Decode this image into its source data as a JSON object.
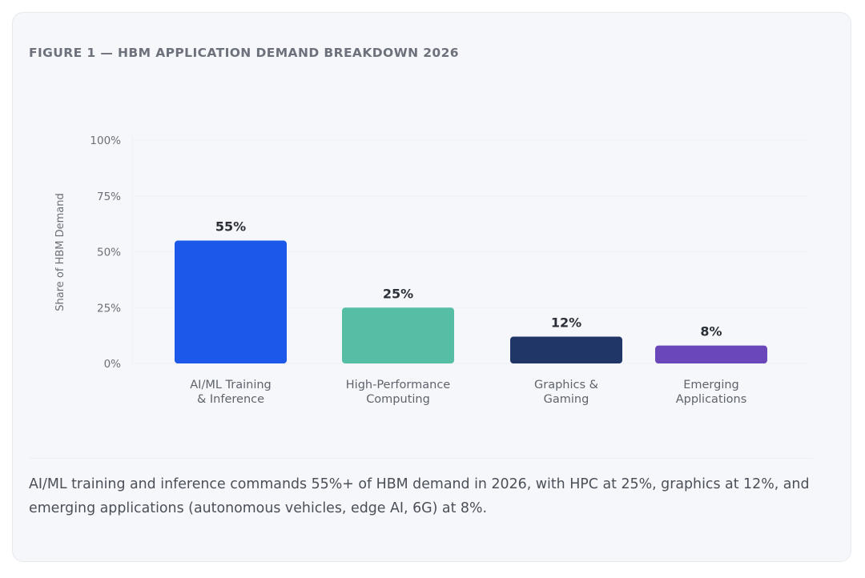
{
  "figure_title": "FIGURE 1 — HBM APPLICATION DEMAND BREAKDOWN 2026",
  "caption": "AI/ML training and inference commands 55%+ of HBM demand in 2026, with HPC at 25%, graphics at 12%, and emerging applications (autonomous vehicles, edge AI, 6G) at 8%.",
  "colors": {
    "card_background": "#f5f7fa",
    "title_text": "#6c717b",
    "caption_text": "#4b4f58",
    "grid": "#eef0f4"
  },
  "chart_data": {
    "type": "bar",
    "title": "FIGURE 1 — HBM APPLICATION DEMAND BREAKDOWN 2026",
    "categories": [
      [
        "AI/ML Training",
        "& Inference"
      ],
      [
        "High-Performance",
        "Computing"
      ],
      [
        "Graphics &",
        "Gaming"
      ],
      [
        "Emerging",
        "Applications"
      ]
    ],
    "values": [
      55,
      25,
      12,
      8
    ],
    "value_labels": [
      "55%",
      "25%",
      "12%",
      "8%"
    ],
    "bar_colors": [
      "#1c58ea",
      "#55bea5",
      "#1f3666",
      "#6a47bb"
    ],
    "ylabel": "Share of HBM Demand",
    "xlabel": "",
    "ylim": [
      0,
      100
    ],
    "yticks": [
      0,
      25,
      50,
      75,
      100
    ],
    "ytick_labels": [
      "0%",
      "25%",
      "50%",
      "75%",
      "100%"
    ],
    "grid": true,
    "legend": "none"
  }
}
